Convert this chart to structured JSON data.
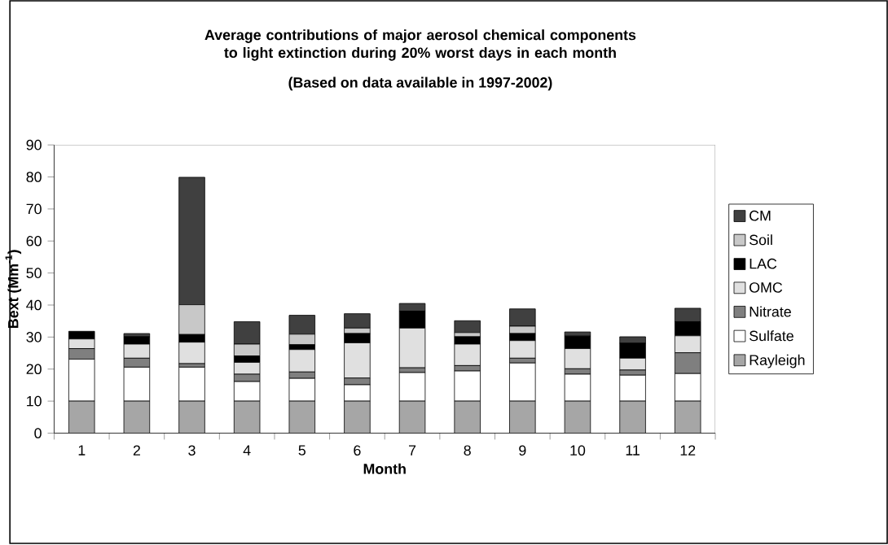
{
  "chart_data": {
    "type": "bar",
    "stacked": true,
    "title": "Average contributions of major aerosol chemical components to light extinction during 20% worst days in each month",
    "subtitle": "(Based on data available in 1997-2002)",
    "xlabel": "Month",
    "ylabel": "Bext (Mm$^{-1}$)",
    "categories": [
      "1",
      "2",
      "3",
      "4",
      "5",
      "6",
      "7",
      "8",
      "9",
      "10",
      "11",
      "12"
    ],
    "series": [
      {
        "name": "Rayleigh",
        "color": "#a6a6a6",
        "values": [
          10,
          10,
          10,
          10,
          10,
          10,
          10,
          10,
          10,
          10,
          10,
          10
        ]
      },
      {
        "name": "Sulfate",
        "color": "#ffffff",
        "values": [
          13.1,
          10.6,
          10.6,
          6.1,
          7.1,
          5.1,
          8.9,
          9.4,
          11.9,
          8.4,
          8.1,
          8.6
        ]
      },
      {
        "name": "Nitrate",
        "color": "#7f7f7f",
        "values": [
          3.3,
          2.8,
          1.1,
          2.3,
          2.0,
          2.1,
          1.5,
          1.7,
          1.5,
          1.7,
          1.6,
          6.5
        ]
      },
      {
        "name": "OMC",
        "color": "#e0e0e0",
        "values": [
          3.0,
          4.4,
          6.7,
          3.7,
          7.0,
          11.0,
          12.4,
          6.7,
          5.5,
          6.3,
          3.7,
          5.3
        ]
      },
      {
        "name": "LAC",
        "color": "#000000",
        "values": [
          2.4,
          2.3,
          2.4,
          2.0,
          1.5,
          2.9,
          5.3,
          2.3,
          2.2,
          3.9,
          4.7,
          4.4
        ]
      },
      {
        "name": "Soil",
        "color": "#c8c8c8",
        "values": [
          null,
          null,
          9.3,
          3.7,
          3.3,
          1.7,
          null,
          1.3,
          2.3,
          null,
          null,
          null
        ]
      },
      {
        "name": "CM",
        "color": "#404040",
        "values": [
          0,
          1.0,
          39.8,
          7.0,
          5.9,
          4.5,
          2.4,
          3.7,
          5.4,
          1.3,
          2.0,
          4.2
        ]
      }
    ],
    "ylim": [
      0,
      90
    ],
    "yticks": [
      0,
      10,
      20,
      30,
      40,
      50,
      60,
      70,
      80,
      90
    ],
    "grid": false,
    "legend": "right"
  }
}
